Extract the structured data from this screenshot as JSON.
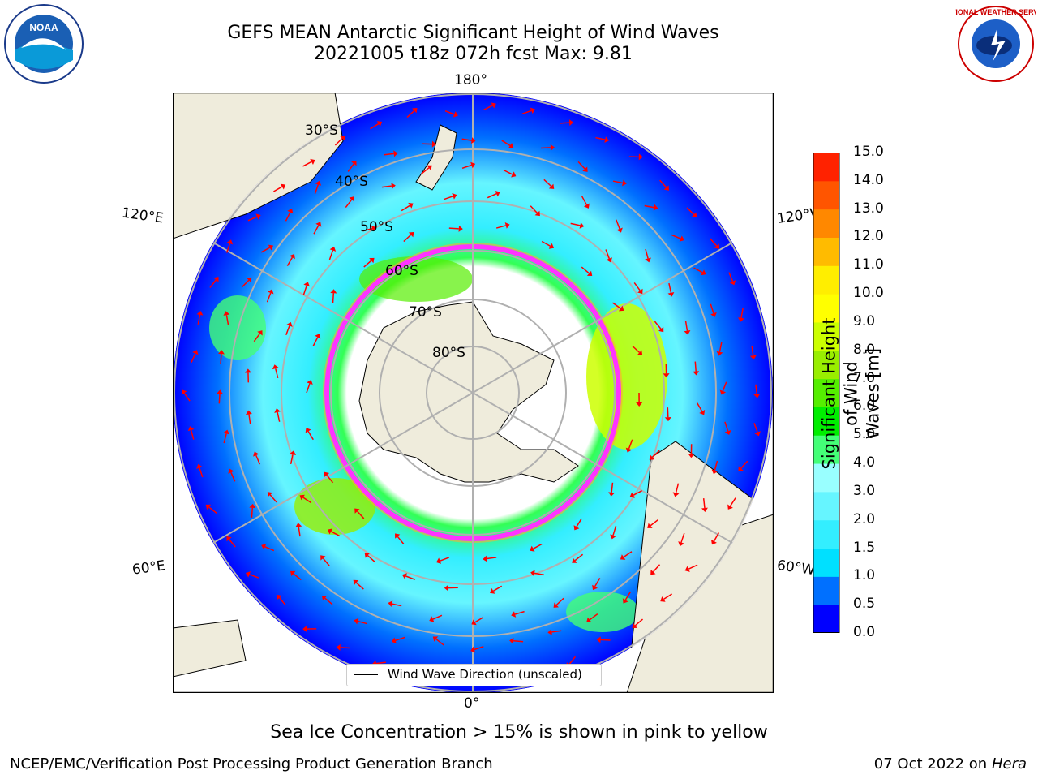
{
  "header": {
    "title_line1": "GEFS MEAN Antarctic Significant Height of Wind Waves",
    "title_line2": "20221005 t18z 072h fcst   Max: 9.81"
  },
  "logos": {
    "left": "NOAA",
    "right": "NATIONAL WEATHER SERVICE"
  },
  "map": {
    "projection": "south-polar-stereographic",
    "lon_labels": {
      "top": "180°",
      "bottom": "0°",
      "upper_left": "120°E",
      "upper_right": "120°W",
      "lower_left": "60°E",
      "lower_right": "60°W"
    },
    "lat_labels": [
      "30°S",
      "40°S",
      "50°S",
      "60°S",
      "70°S",
      "80°S"
    ],
    "colors": {
      "land": "#efecdc",
      "sea_ice": "#ff33ff",
      "arrow": "#ff0000",
      "grid": "#b0b0b0"
    },
    "legend": "Wind Wave Direction (unscaled)"
  },
  "colorbar": {
    "label_line1": "Significant Height of Wind",
    "label_line2": "Waves [m]",
    "ticks": [
      "0.0",
      "0.5",
      "1.0",
      "1.5",
      "2.0",
      "3.0",
      "4.0",
      "5.0",
      "6.0",
      "7.0",
      "8.0",
      "9.0",
      "10.0",
      "11.0",
      "12.0",
      "13.0",
      "14.0",
      "15.0"
    ],
    "colors": [
      "#0000ff",
      "#0070ff",
      "#00e0ff",
      "#33eeff",
      "#66f5ff",
      "#99ffff",
      "#44ff77",
      "#00ee00",
      "#55ee00",
      "#99ee00",
      "#ccff00",
      "#ffff00",
      "#ffee00",
      "#ffbb00",
      "#ff8800",
      "#ff5500",
      "#ff2200",
      "#ff0000"
    ]
  },
  "caption": "Sea Ice Concentration > 15% is shown in pink to yellow",
  "footer": {
    "left": "NCEP/EMC/Verification Post Processing Product Generation Branch",
    "right_date": "07 Oct 2022 on",
    "right_host": "Hera"
  }
}
